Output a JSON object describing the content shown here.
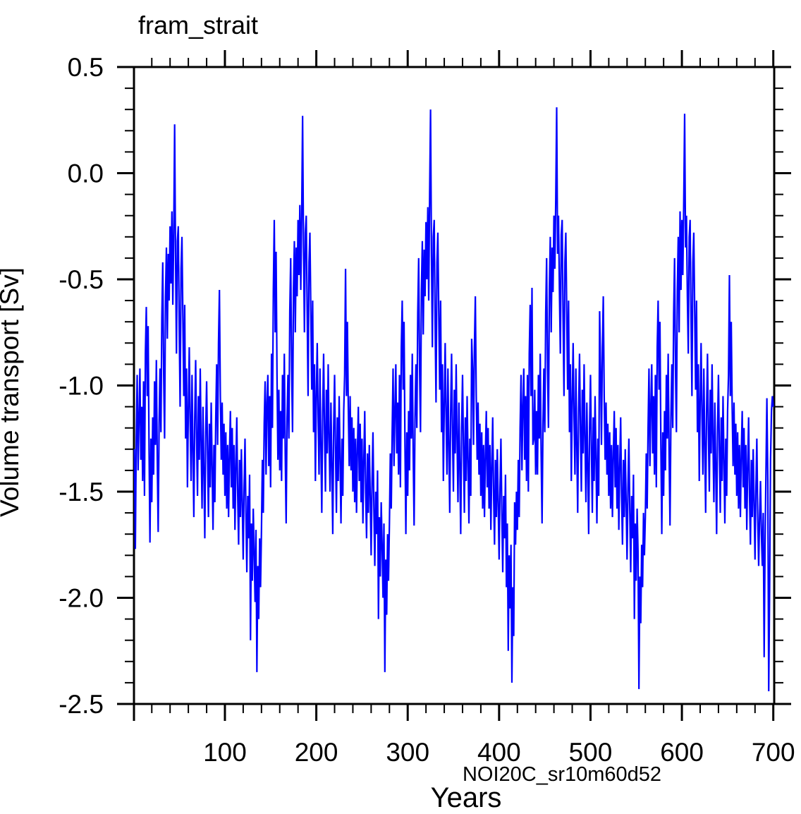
{
  "page": {
    "background": "#ffffff"
  },
  "chart_data": {
    "type": "line",
    "title": "fram_strait",
    "xlabel": "Years",
    "ylabel": "Volume transport [Sv]",
    "annotation": "NOI20C_sr10m60d52",
    "xlim": [
      0.5,
      701
    ],
    "ylim": [
      -2.5,
      0.5
    ],
    "x_major_ticks": [
      100,
      200,
      300,
      400,
      500,
      600,
      700
    ],
    "x_tick_labels": [
      "100",
      "200",
      "300",
      "400",
      "500",
      "600",
      "700"
    ],
    "x_minor_step": 20,
    "y_major_ticks": [
      0.5,
      0.0,
      -0.5,
      -1.0,
      -1.5,
      -2.0,
      -2.5
    ],
    "y_tick_labels": [
      "0.5",
      "0.0",
      "-0.5",
      "-1.0",
      "-1.5",
      "-2.0",
      "-2.5"
    ],
    "y_minor_step": 0.1,
    "grid": false,
    "frame": true,
    "tick_direction": "out",
    "colors": {
      "axis": "#000000",
      "text": "#000000",
      "line": "#0000ff",
      "annotation": "#1414ff"
    },
    "series": [
      {
        "name": "fram_strait",
        "color": "#0000ff",
        "x_start": 1,
        "x_step": 1,
        "values": [
          -1.3,
          -1.77,
          -1.25,
          -0.95,
          -1.4,
          -1.15,
          -0.92,
          -1.35,
          -1.1,
          -1.45,
          -0.98,
          -1.52,
          -0.85,
          -0.63,
          -1.05,
          -0.72,
          -1.3,
          -1.74,
          -1.25,
          -1.55,
          -1.15,
          -1.42,
          -0.98,
          -1.28,
          -0.88,
          -1.35,
          -1.69,
          -1.18,
          -0.92,
          -1.22,
          -0.68,
          -0.42,
          -0.95,
          -1.25,
          -0.58,
          -0.35,
          -0.78,
          -0.38,
          -0.6,
          -0.25,
          -0.52,
          -0.18,
          -0.62,
          -0.28,
          0.23,
          -0.4,
          -0.85,
          -0.32,
          -0.25,
          -0.72,
          -1.1,
          -0.45,
          -0.3,
          -0.68,
          -1.05,
          -0.62,
          -1.25,
          -0.92,
          -1.48,
          -1.12,
          -0.82,
          -1.18,
          -1.45,
          -0.95,
          -1.3,
          -1.62,
          -1.15,
          -0.88,
          -1.25,
          -1.52,
          -1.05,
          -1.35,
          -0.92,
          -1.28,
          -1.58,
          -1.1,
          -1.4,
          -1.72,
          -1.22,
          -0.98,
          -1.32,
          -1.62,
          -1.18,
          -1.48,
          -1.08,
          -1.38,
          -1.68,
          -1.28,
          -1.55,
          -1.15,
          -0.9,
          -1.28,
          -0.8,
          -0.55,
          -1.05,
          -1.35,
          -1.08,
          -1.42,
          -1.18,
          -1.52,
          -1.22,
          -1.58,
          -1.28,
          -1.62,
          -1.32,
          -1.12,
          -1.48,
          -1.2,
          -1.58,
          -1.28,
          -1.68,
          -1.38,
          -1.15,
          -1.52,
          -1.75,
          -1.35,
          -1.62,
          -1.3,
          -1.55,
          -1.82,
          -1.48,
          -1.25,
          -1.6,
          -1.88,
          -1.52,
          -1.72,
          -1.42,
          -2.2,
          -1.65,
          -1.92,
          -1.58,
          -1.78,
          -2.02,
          -1.68,
          -2.35,
          -1.85,
          -2.1,
          -1.72,
          -1.95,
          -1.68,
          -1.35,
          -1.6,
          -1.18,
          -0.98,
          -1.42,
          -1.08,
          -0.95,
          -1.38,
          -1.05,
          -1.48,
          -0.85,
          -1.2,
          -0.55,
          -0.22,
          -0.75,
          -0.37,
          -0.95,
          -1.35,
          -1.02,
          -1.4,
          -1.12,
          -1.45,
          -0.95,
          -1.25,
          -0.85,
          -1.32,
          -1.65,
          -1.15,
          -0.95,
          -1.25,
          -0.65,
          -0.4,
          -0.92,
          -1.22,
          -0.55,
          -0.32,
          -0.75,
          -0.35,
          -0.58,
          -0.22,
          -0.48,
          -0.15,
          -0.55,
          -0.2,
          0.27,
          -0.35,
          -0.75,
          -0.28,
          -0.2,
          -0.65,
          -1.05,
          -0.42,
          -0.28,
          -0.65,
          -1.02,
          -0.6,
          -1.22,
          -0.9,
          -1.45,
          -1.05,
          -0.8,
          -1.15,
          -1.42,
          -0.92,
          -1.28,
          -1.6,
          -1.12,
          -0.85,
          -1.22,
          -1.5,
          -1.02,
          -1.32,
          -0.9,
          -1.25,
          -1.5,
          -1.08,
          -1.38,
          -1.7,
          -1.2,
          -0.95,
          -1.3,
          -1.6,
          -1.15,
          -1.45,
          -1.05,
          -1.35,
          -1.65,
          -1.25,
          -1.52,
          -1.12,
          -0.95,
          -0.45,
          -1.05,
          -0.7,
          -1.1,
          -1.38,
          -1.05,
          -1.4,
          -1.15,
          -1.5,
          -1.2,
          -1.55,
          -1.25,
          -1.6,
          -1.3,
          -1.1,
          -1.45,
          -1.18,
          -1.55,
          -1.25,
          -1.65,
          -1.35,
          -1.12,
          -1.5,
          -1.72,
          -1.32,
          -1.6,
          -1.28,
          -1.52,
          -1.8,
          -1.45,
          -1.22,
          -1.58,
          -1.85,
          -1.5,
          -1.7,
          -1.4,
          -2.1,
          -1.62,
          -1.9,
          -1.55,
          -1.75,
          -2.0,
          -1.65,
          -2.35,
          -1.82,
          -2.08,
          -1.7,
          -1.92,
          -1.65,
          -1.32,
          -1.58,
          -1.22,
          -0.92,
          -1.38,
          -1.12,
          -0.9,
          -1.32,
          -1.08,
          -1.42,
          -0.95,
          -1.48,
          -0.82,
          -0.6,
          -1.02,
          -0.7,
          -1.28,
          -1.7,
          -1.22,
          -1.52,
          -1.12,
          -1.4,
          -0.95,
          -1.25,
          -0.85,
          -1.32,
          -1.66,
          -1.15,
          -0.9,
          -1.2,
          -0.66,
          -0.4,
          -0.92,
          -1.22,
          -0.55,
          -0.32,
          -0.76,
          -0.36,
          -0.58,
          -0.23,
          -0.5,
          -0.16,
          -0.6,
          -0.1,
          0.3,
          -0.38,
          -0.82,
          -0.3,
          -0.22,
          -0.7,
          -1.08,
          -0.42,
          -0.28,
          -0.66,
          -1.02,
          -0.6,
          -1.22,
          -0.9,
          -1.45,
          -1.1,
          -0.8,
          -1.15,
          -1.42,
          -0.92,
          -1.28,
          -1.6,
          -1.12,
          -0.85,
          -1.22,
          -1.5,
          -1.02,
          -1.32,
          -0.9,
          -1.25,
          -1.55,
          -1.08,
          -1.38,
          -1.7,
          -1.2,
          -0.95,
          -1.3,
          -1.6,
          -1.15,
          -1.45,
          -1.05,
          -1.35,
          -1.65,
          -1.25,
          -1.52,
          -0.78,
          -0.92,
          -1.28,
          -0.82,
          -0.58,
          -1.05,
          -1.35,
          -1.08,
          -1.42,
          -1.18,
          -1.52,
          -1.22,
          -1.58,
          -1.28,
          -1.62,
          -1.32,
          -1.12,
          -1.48,
          -1.2,
          -1.58,
          -1.28,
          -1.68,
          -1.38,
          -1.15,
          -1.52,
          -1.75,
          -1.35,
          -1.62,
          -1.3,
          -1.55,
          -1.82,
          -1.48,
          -1.25,
          -1.6,
          -1.88,
          -1.52,
          -1.72,
          -1.42,
          -1.95,
          -1.65,
          -2.25,
          -1.8,
          -2.05,
          -1.75,
          -2.4,
          -1.95,
          -2.18,
          -1.55,
          -1.75,
          -1.5,
          -1.68,
          -1.35,
          -1.62,
          -1.2,
          -0.95,
          -1.4,
          -1.1,
          -0.92,
          -1.35,
          -1.05,
          -1.45,
          -0.95,
          -1.5,
          -0.85,
          -0.62,
          -1.05,
          -0.54,
          -1.28,
          -1.25,
          -1.02,
          -1.42,
          -1.12,
          -1.42,
          -0.95,
          -1.25,
          -0.85,
          -1.32,
          -1.65,
          -1.18,
          -0.92,
          -1.22,
          -0.66,
          -0.4,
          -0.92,
          -1.2,
          -0.55,
          -0.3,
          -0.75,
          -0.35,
          -0.56,
          -0.2,
          -0.45,
          -0.12,
          0.31,
          -0.38,
          -0.2,
          -0.55,
          -0.85,
          -0.29,
          -0.22,
          -0.68,
          -1.05,
          -0.42,
          -0.28,
          -0.65,
          -1.02,
          -0.6,
          -1.22,
          -0.9,
          -1.45,
          -1.08,
          -0.8,
          -1.15,
          -1.42,
          -0.92,
          -1.28,
          -1.6,
          -1.12,
          -0.85,
          -1.22,
          -1.5,
          -1.02,
          -1.32,
          -0.9,
          -1.25,
          -1.55,
          -1.08,
          -1.38,
          -1.7,
          -1.2,
          -0.95,
          -1.3,
          -1.6,
          -1.15,
          -1.45,
          -1.05,
          -1.35,
          -1.65,
          -1.25,
          -1.52,
          -0.65,
          -0.92,
          -1.28,
          -0.82,
          -0.58,
          -1.05,
          -1.35,
          -1.08,
          -1.42,
          -1.18,
          -1.52,
          -1.22,
          -1.58,
          -1.28,
          -1.62,
          -1.32,
          -1.12,
          -1.48,
          -1.2,
          -1.58,
          -1.28,
          -1.68,
          -1.38,
          -1.15,
          -1.52,
          -1.75,
          -1.35,
          -1.62,
          -1.3,
          -1.55,
          -1.82,
          -1.48,
          -1.25,
          -1.6,
          -1.88,
          -1.52,
          -1.72,
          -1.42,
          -2.1,
          -1.65,
          -1.92,
          -1.58,
          -1.78,
          -2.43,
          -1.9,
          -2.12,
          -1.75,
          -1.95,
          -1.6,
          -1.8,
          -1.62,
          -1.32,
          -1.58,
          -1.2,
          -0.92,
          -1.38,
          -1.1,
          -0.9,
          -1.32,
          -1.05,
          -1.42,
          -0.95,
          -1.48,
          -0.82,
          -0.6,
          -1.02,
          -0.7,
          -1.28,
          -1.7,
          -1.22,
          -1.52,
          -1.12,
          -1.4,
          -0.95,
          -1.25,
          -0.85,
          -1.32,
          -1.66,
          -1.15,
          -0.9,
          -1.2,
          -0.66,
          -0.4,
          -0.92,
          -1.22,
          -0.55,
          -0.3,
          -0.75,
          -0.18,
          -0.55,
          -0.22,
          -0.48,
          -0.15,
          0.28,
          -0.35,
          -0.2,
          -0.58,
          -0.85,
          -0.3,
          -0.22,
          -0.68,
          -1.05,
          -0.42,
          -0.28,
          -0.65,
          -1.02,
          -0.6,
          -1.22,
          -0.9,
          -1.45,
          -1.08,
          -0.8,
          -1.15,
          -1.42,
          -0.92,
          -1.28,
          -1.6,
          -1.12,
          -0.85,
          -1.22,
          -1.5,
          -1.02,
          -1.32,
          -0.9,
          -1.25,
          -1.55,
          -1.08,
          -1.38,
          -1.7,
          -1.2,
          -0.95,
          -1.3,
          -1.6,
          -1.15,
          -1.45,
          -1.05,
          -1.35,
          -1.65,
          -1.25,
          -1.52,
          -1.12,
          -0.95,
          -0.48,
          -1.05,
          -0.7,
          -1.1,
          -1.38,
          -1.08,
          -1.42,
          -1.18,
          -1.52,
          -1.22,
          -1.58,
          -1.28,
          -1.62,
          -1.32,
          -1.12,
          -1.48,
          -1.2,
          -1.58,
          -1.28,
          -1.68,
          -1.38,
          -1.15,
          -1.52,
          -1.75,
          -1.35,
          -1.62,
          -1.3,
          -1.55,
          -1.82,
          -1.48,
          -1.25,
          -1.62,
          -1.85,
          -1.62,
          -1.45,
          -1.7,
          -1.85,
          -1.6,
          -2.28,
          -1.75,
          -1.4,
          -1.06,
          -1.45,
          -2.44,
          -1.95,
          -1.35,
          -1.12,
          -1.05,
          -1.1
        ]
      }
    ]
  }
}
